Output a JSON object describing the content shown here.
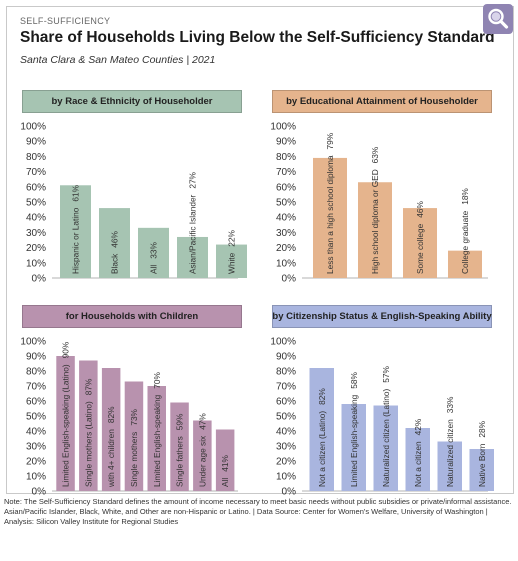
{
  "header": {
    "eyebrow": "SELF-SUFFICIENCY",
    "title": "Share of Households Living Below the Self-Sufficiency Standard",
    "subtitle": "Santa Clara & San Mateo Counties | 2021"
  },
  "footnote": "Note: The Self-Sufficiency Standard defines the amount of income necessary to meet basic needs without public subsidies or private/informal assistance. Asian/Pacific Islander, Black, White, and Other are non-Hispanic or Latino. | Data Source: Center for Women's Welfare, University of Washington | Analysis: Silicon Valley Institute for Regional Studies",
  "icons": {
    "zoom": "magnifier-icon"
  },
  "colors": {
    "race": {
      "header": "#a6c4b2",
      "bar": "#a6c4b2"
    },
    "education": {
      "header": "#e5b48d",
      "bar": "#e5b48d"
    },
    "children": {
      "header": "#b892ae",
      "bar": "#b892ae"
    },
    "citizenship": {
      "header": "#a9b5df",
      "bar": "#a9b5df"
    }
  },
  "chart_data": [
    {
      "type": "bar",
      "title": "by Race & Ethnicity of Householder",
      "categories": [
        "Hispanic or Latino",
        "Black",
        "All",
        "Asian/Pacific Islander",
        "White"
      ],
      "values": [
        61,
        46,
        33,
        27,
        22
      ],
      "value_labels": [
        "61%",
        "46%",
        "33%",
        "27%",
        "22%"
      ],
      "yticks": [
        "0%",
        "10%",
        "20%",
        "30%",
        "40%",
        "50%",
        "60%",
        "70%",
        "80%",
        "90%",
        "100%"
      ],
      "ylim": [
        0,
        100
      ]
    },
    {
      "type": "bar",
      "title": "by Educational Attainment of Householder",
      "categories": [
        "Less than a high school diploma",
        "High school diploma or GED",
        "Some college",
        "College graduate"
      ],
      "values": [
        79,
        63,
        46,
        18
      ],
      "value_labels": [
        "79%",
        "63%",
        "46%",
        "18%"
      ],
      "yticks": [
        "0%",
        "10%",
        "20%",
        "30%",
        "40%",
        "50%",
        "60%",
        "70%",
        "80%",
        "90%",
        "100%"
      ],
      "ylim": [
        0,
        100
      ]
    },
    {
      "type": "bar",
      "title": "for Households with Children",
      "categories": [
        "Limited English-speaking (Latino)",
        "Single mothers (Latino)",
        "with 4+ children",
        "Single mothers",
        "Limited English-speaking",
        "Single fathers",
        "Under age six",
        "All"
      ],
      "values": [
        90,
        87,
        82,
        73,
        70,
        59,
        47,
        41
      ],
      "value_labels": [
        "90%",
        "87%",
        "82%",
        "73%",
        "70%",
        "59%",
        "47%",
        "41%"
      ],
      "yticks": [
        "0%",
        "10%",
        "20%",
        "30%",
        "40%",
        "50%",
        "60%",
        "70%",
        "80%",
        "90%",
        "100%"
      ],
      "ylim": [
        0,
        100
      ]
    },
    {
      "type": "bar",
      "title": "by Citizenship Status & English-Speaking Ability",
      "categories": [
        "Not a citizen (Latino)",
        "Limited English-speaking",
        "Naturalized citizen (Latino)",
        "Not a citizen",
        "Naturalized citizen",
        "Native Born"
      ],
      "values": [
        82,
        58,
        57,
        42,
        33,
        28
      ],
      "value_labels": [
        "82%",
        "58%",
        "57%",
        "42%",
        "33%",
        "28%"
      ],
      "yticks": [
        "0%",
        "10%",
        "20%",
        "30%",
        "40%",
        "50%",
        "60%",
        "70%",
        "80%",
        "90%",
        "100%"
      ],
      "ylim": [
        0,
        100
      ]
    }
  ]
}
